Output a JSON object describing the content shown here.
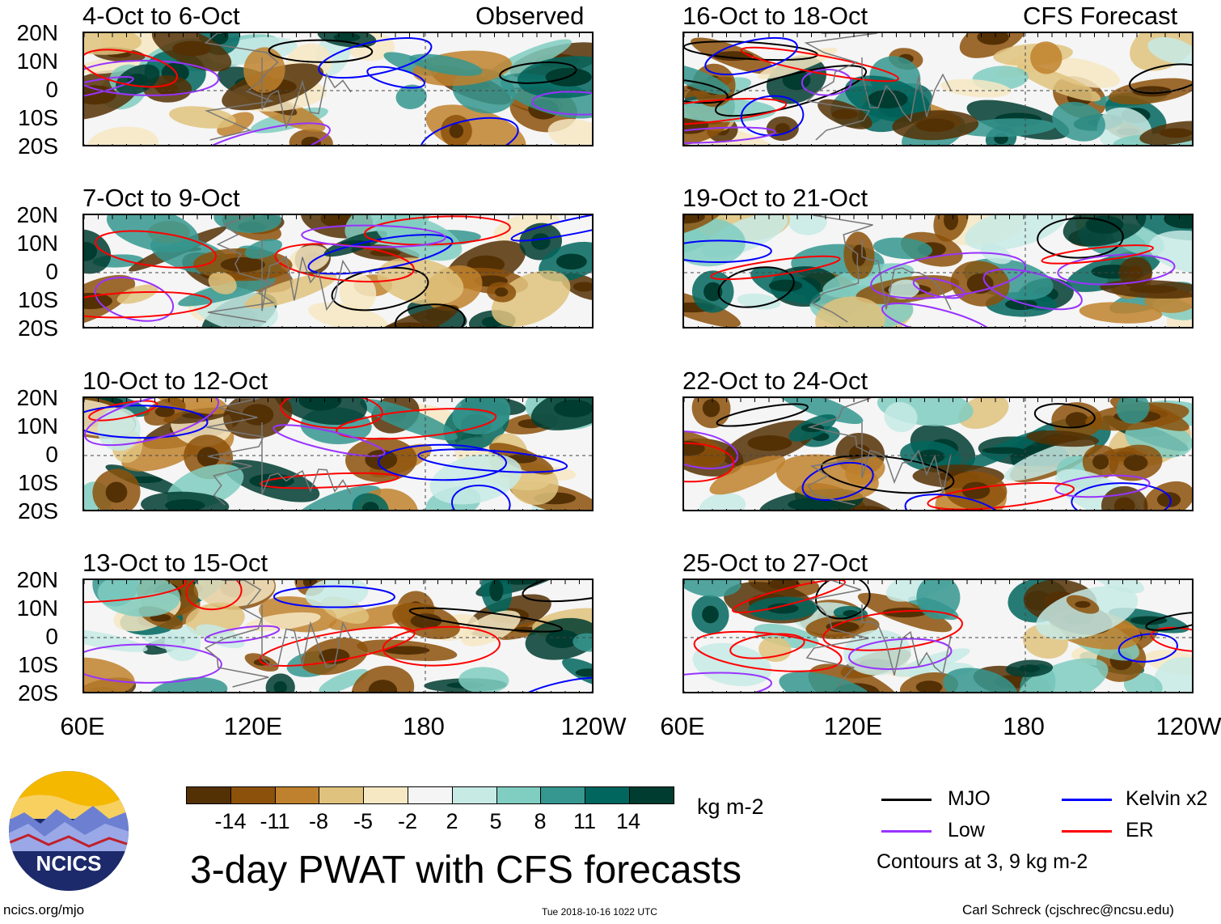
{
  "labels": {
    "observed": "Observed",
    "forecast": "CFS Forecast"
  },
  "panels": [
    {
      "title": "4-Oct to 6-Oct"
    },
    {
      "title": "7-Oct to 9-Oct"
    },
    {
      "title": "10-Oct to 12-Oct"
    },
    {
      "title": "13-Oct to 15-Oct"
    },
    {
      "title": "16-Oct to 18-Oct"
    },
    {
      "title": "19-Oct to 21-Oct"
    },
    {
      "title": "22-Oct to 24-Oct"
    },
    {
      "title": "25-Oct to 27-Oct"
    }
  ],
  "lat_labels": [
    "20N",
    "10N",
    "0",
    "10S",
    "20S"
  ],
  "lon_labels": [
    "60E",
    "120E",
    "180",
    "120W"
  ],
  "colorbar": {
    "unit": "kg m-2",
    "ticks": [
      "-14",
      "-11",
      "-8",
      "-5",
      "-2",
      "2",
      "5",
      "8",
      "11",
      "14"
    ],
    "colors": [
      "#543005",
      "#8c510a",
      "#bf812d",
      "#dfc27d",
      "#f6e8c3",
      "#f5f5f5",
      "#c7eae5",
      "#80cdc1",
      "#35978f",
      "#01665e",
      "#003c30"
    ]
  },
  "legend": {
    "items": [
      {
        "name": "MJO",
        "color": "#000000"
      },
      {
        "name": "Kelvin x2",
        "color": "#0000ff"
      },
      {
        "name": "Low",
        "color": "#9933ff"
      },
      {
        "name": "ER",
        "color": "#ff0000"
      }
    ],
    "note": "Contours at 3, 9 kg m-2"
  },
  "logo_text": "NCICS",
  "main_title": "3-day PWAT with CFS forecasts",
  "footer": {
    "left": "ncics.org/mjo",
    "center": "Tue 2018-10-16 1022 UTC",
    "right": "Carl Schreck (cjschrec@ncsu.edu)"
  }
}
